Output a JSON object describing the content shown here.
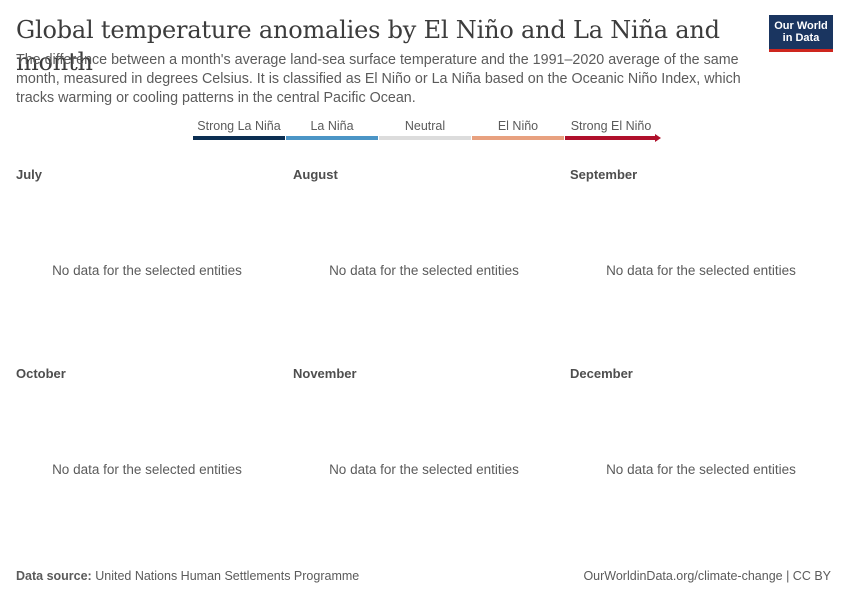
{
  "header": {
    "title": "Global temperature anomalies by El Niño and La Niña and month",
    "subtitle": "The difference between a month's average land-sea surface temperature and the 1991–2020 average of the same month, measured in degrees Celsius. It is classified as El Niño or La Niña based on the Oceanic Niño Index, which tracks warming or cooling patterns in the central Pacific Ocean.",
    "logo_line1": "Our World",
    "logo_line2": "in Data"
  },
  "legend": [
    {
      "label": "Strong La Niña",
      "color": "#0b2e52"
    },
    {
      "label": "La Niña",
      "color": "#4b95c6"
    },
    {
      "label": "Neutral",
      "color": "#dcdcdc"
    },
    {
      "label": "El Niño",
      "color": "#e8a17f"
    },
    {
      "label": "Strong El Niño",
      "color": "#b0102b"
    }
  ],
  "chart_data": {
    "type": "line",
    "panels": [
      {
        "title": "July",
        "message": "No data for the selected entities",
        "series": []
      },
      {
        "title": "August",
        "message": "No data for the selected entities",
        "series": []
      },
      {
        "title": "September",
        "message": "No data for the selected entities",
        "series": []
      },
      {
        "title": "October",
        "message": "No data for the selected entities",
        "series": []
      },
      {
        "title": "November",
        "message": "No data for the selected entities",
        "series": []
      },
      {
        "title": "December",
        "message": "No data for the selected entities",
        "series": []
      }
    ]
  },
  "footer": {
    "source_label": "Data source:",
    "source_text": "United Nations Human Settlements Programme",
    "credit": "OurWorldinData.org/climate-change | CC BY"
  }
}
